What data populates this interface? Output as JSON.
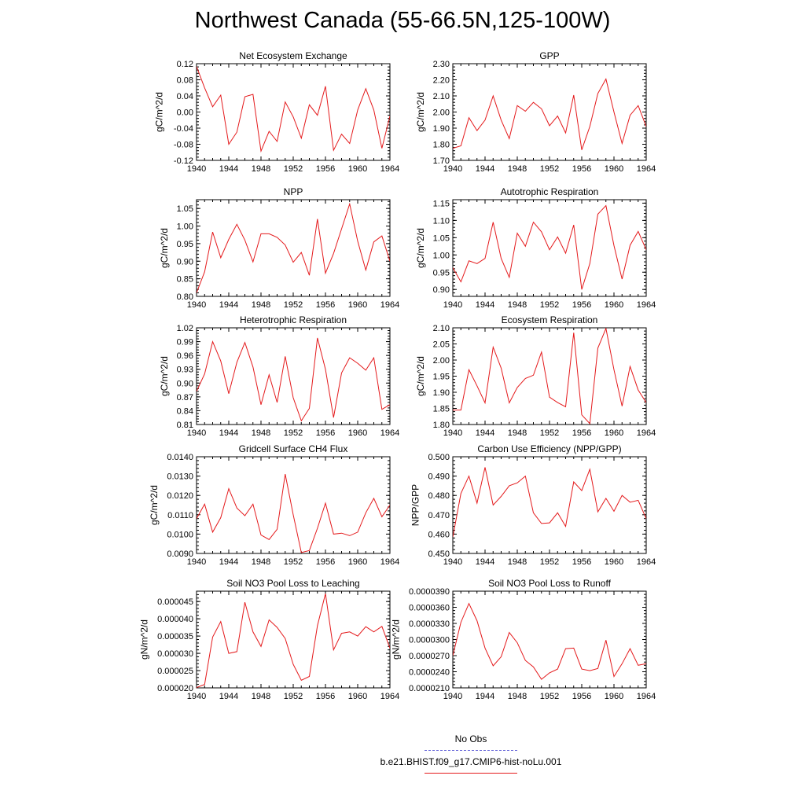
{
  "title": "Northwest Canada (55-66.5N,125-100W)",
  "legend": {
    "entries": [
      {
        "label": "No Obs",
        "color": "#5b5bd6",
        "style": "dashed"
      },
      {
        "label": "b.e21.BHIST.f09_g17.CMIP6-hist-noLu.001",
        "color": "#e41a1c",
        "style": "solid"
      }
    ]
  },
  "chart_data": [
    {
      "type": "line",
      "title": "Net Ecosystem Exchange",
      "ylabel": "gC/m^2/d",
      "xlim": [
        1940,
        1964
      ],
      "ylim": [
        -0.12,
        0.12
      ],
      "xticks": [
        "1940",
        "1944",
        "1948",
        "1952",
        "1956",
        "1960",
        "1964"
      ],
      "yticks": [
        "-0.12",
        "-0.08",
        "-0.04",
        "0.00",
        "0.04",
        "0.08",
        "0.12"
      ],
      "x": [
        1940,
        1941,
        1942,
        1943,
        1944,
        1945,
        1946,
        1947,
        1948,
        1949,
        1950,
        1951,
        1952,
        1953,
        1954,
        1955,
        1956,
        1957,
        1958,
        1959,
        1960,
        1961,
        1962,
        1963,
        1964
      ],
      "series": [
        {
          "name": "b.e21.BHIST.f09_g17.CMIP6-hist-noLu.001",
          "color": "#e41a1c",
          "values": [
            0.113,
            0.06,
            0.013,
            0.042,
            -0.08,
            -0.05,
            0.038,
            0.044,
            -0.097,
            -0.048,
            -0.073,
            0.025,
            -0.012,
            -0.065,
            0.018,
            -0.008,
            0.064,
            -0.095,
            -0.055,
            -0.078,
            0.005,
            0.058,
            0.005,
            -0.09,
            -0.01
          ]
        }
      ]
    },
    {
      "type": "line",
      "title": "GPP",
      "ylabel": "gC/m^2/d",
      "xlim": [
        1940,
        1964
      ],
      "ylim": [
        1.7,
        2.3
      ],
      "xticks": [
        "1940",
        "1944",
        "1948",
        "1952",
        "1956",
        "1960",
        "1964"
      ],
      "yticks": [
        "1.70",
        "1.80",
        "1.90",
        "2.00",
        "2.10",
        "2.20",
        "2.30"
      ],
      "x": [
        1940,
        1941,
        1942,
        1943,
        1944,
        1945,
        1946,
        1947,
        1948,
        1949,
        1950,
        1951,
        1952,
        1953,
        1954,
        1955,
        1956,
        1957,
        1958,
        1959,
        1960,
        1961,
        1962,
        1963,
        1964
      ],
      "series": [
        {
          "name": "b.e21.BHIST.f09_g17.CMIP6-hist-noLu.001",
          "color": "#e41a1c",
          "values": [
            1.775,
            1.79,
            1.965,
            1.885,
            1.95,
            2.1,
            1.95,
            1.835,
            2.04,
            2.005,
            2.06,
            2.02,
            1.915,
            1.975,
            1.87,
            2.105,
            1.765,
            1.91,
            2.115,
            2.205,
            2.0,
            1.805,
            1.98,
            2.04,
            1.91
          ]
        }
      ]
    },
    {
      "type": "line",
      "title": "NPP",
      "ylabel": "gC/m^2/d",
      "xlim": [
        1940,
        1964
      ],
      "ylim": [
        0.8,
        1.075
      ],
      "xticks": [
        "1940",
        "1944",
        "1948",
        "1952",
        "1956",
        "1960",
        "1964"
      ],
      "yticks": [
        "0.80",
        "0.85",
        "0.90",
        "0.95",
        "1.00",
        "1.05"
      ],
      "x": [
        1940,
        1941,
        1942,
        1943,
        1944,
        1945,
        1946,
        1947,
        1948,
        1949,
        1950,
        1951,
        1952,
        1953,
        1954,
        1955,
        1956,
        1957,
        1958,
        1959,
        1960,
        1961,
        1962,
        1963,
        1964
      ],
      "series": [
        {
          "name": "b.e21.BHIST.f09_g17.CMIP6-hist-noLu.001",
          "color": "#e41a1c",
          "values": [
            0.81,
            0.87,
            0.983,
            0.91,
            0.962,
            1.005,
            0.96,
            0.898,
            0.978,
            0.978,
            0.968,
            0.946,
            0.897,
            0.925,
            0.86,
            1.02,
            0.866,
            0.922,
            0.992,
            1.063,
            0.957,
            0.875,
            0.955,
            0.972,
            0.9
          ]
        }
      ]
    },
    {
      "type": "line",
      "title": "Autotrophic Respiration",
      "ylabel": "gC/m^2/d",
      "xlim": [
        1940,
        1964
      ],
      "ylim": [
        0.88,
        1.16
      ],
      "xticks": [
        "1940",
        "1944",
        "1948",
        "1952",
        "1956",
        "1960",
        "1964"
      ],
      "yticks": [
        "0.90",
        "0.95",
        "1.00",
        "1.05",
        "1.10",
        "1.15"
      ],
      "x": [
        1940,
        1941,
        1942,
        1943,
        1944,
        1945,
        1946,
        1947,
        1948,
        1949,
        1950,
        1951,
        1952,
        1953,
        1954,
        1955,
        1956,
        1957,
        1958,
        1959,
        1960,
        1961,
        1962,
        1963,
        1964
      ],
      "series": [
        {
          "name": "b.e21.BHIST.f09_g17.CMIP6-hist-noLu.001",
          "color": "#e41a1c",
          "values": [
            0.963,
            0.922,
            0.983,
            0.975,
            0.99,
            1.095,
            0.99,
            0.935,
            1.063,
            1.025,
            1.095,
            1.067,
            1.015,
            1.052,
            1.005,
            1.087,
            0.9,
            0.975,
            1.118,
            1.143,
            1.027,
            0.93,
            1.028,
            1.068,
            1.015
          ]
        }
      ]
    },
    {
      "type": "line",
      "title": "Heterotrophic Respiration",
      "ylabel": "gC/m^2/d",
      "xlim": [
        1940,
        1964
      ],
      "ylim": [
        0.81,
        1.02
      ],
      "xticks": [
        "1940",
        "1944",
        "1948",
        "1952",
        "1956",
        "1960",
        "1964"
      ],
      "yticks": [
        "0.81",
        "0.84",
        "0.87",
        "0.90",
        "0.93",
        "0.96",
        "0.99",
        "1.02"
      ],
      "x": [
        1940,
        1941,
        1942,
        1943,
        1944,
        1945,
        1946,
        1947,
        1948,
        1949,
        1950,
        1951,
        1952,
        1953,
        1954,
        1955,
        1956,
        1957,
        1958,
        1959,
        1960,
        1961,
        1962,
        1963,
        1964
      ],
      "series": [
        {
          "name": "b.e21.BHIST.f09_g17.CMIP6-hist-noLu.001",
          "color": "#e41a1c",
          "values": [
            0.882,
            0.92,
            0.99,
            0.948,
            0.877,
            0.945,
            0.988,
            0.935,
            0.853,
            0.918,
            0.858,
            0.958,
            0.868,
            0.818,
            0.845,
            0.998,
            0.93,
            0.825,
            0.922,
            0.955,
            0.943,
            0.928,
            0.955,
            0.843,
            0.853
          ]
        }
      ]
    },
    {
      "type": "line",
      "title": "Ecosystem Respiration",
      "ylabel": "gC/m^2/d",
      "xlim": [
        1940,
        1964
      ],
      "ylim": [
        1.8,
        2.1
      ],
      "xticks": [
        "1940",
        "1944",
        "1948",
        "1952",
        "1956",
        "1960",
        "1964"
      ],
      "yticks": [
        "1.80",
        "1.85",
        "1.90",
        "1.95",
        "2.00",
        "2.05",
        "2.10"
      ],
      "x": [
        1940,
        1941,
        1942,
        1943,
        1944,
        1945,
        1946,
        1947,
        1948,
        1949,
        1950,
        1951,
        1952,
        1953,
        1954,
        1955,
        1956,
        1957,
        1958,
        1959,
        1960,
        1961,
        1962,
        1963,
        1964
      ],
      "series": [
        {
          "name": "b.e21.BHIST.f09_g17.CMIP6-hist-noLu.001",
          "color": "#e41a1c",
          "values": [
            1.845,
            1.845,
            1.97,
            1.92,
            1.867,
            2.04,
            1.975,
            1.867,
            1.915,
            1.943,
            1.953,
            2.025,
            1.885,
            1.868,
            1.855,
            2.085,
            1.83,
            1.803,
            2.037,
            2.098,
            1.97,
            1.857,
            1.98,
            1.907,
            1.868
          ]
        }
      ]
    },
    {
      "type": "line",
      "title": "Gridcell Surface CH4 Flux",
      "ylabel": "gC/m^2/d",
      "xlim": [
        1940,
        1964
      ],
      "ylim": [
        0.009,
        0.014
      ],
      "xticks": [
        "1940",
        "1944",
        "1948",
        "1952",
        "1956",
        "1960",
        "1964"
      ],
      "yticks": [
        "0.0090",
        "0.0100",
        "0.0110",
        "0.0120",
        "0.0130",
        "0.0140"
      ],
      "x": [
        1940,
        1941,
        1942,
        1943,
        1944,
        1945,
        1946,
        1947,
        1948,
        1949,
        1950,
        1951,
        1952,
        1953,
        1954,
        1955,
        1956,
        1957,
        1958,
        1959,
        1960,
        1961,
        1962,
        1963,
        1964
      ],
      "series": [
        {
          "name": "b.e21.BHIST.f09_g17.CMIP6-hist-noLu.001",
          "color": "#e41a1c",
          "values": [
            0.0108,
            0.01155,
            0.0101,
            0.01085,
            0.01235,
            0.01135,
            0.01095,
            0.01155,
            0.00995,
            0.00972,
            0.01025,
            0.0131,
            0.011,
            0.00905,
            0.00915,
            0.0103,
            0.0116,
            0.01,
            0.01005,
            0.00992,
            0.0101,
            0.0111,
            0.01185,
            0.0109,
            0.0115
          ]
        }
      ]
    },
    {
      "type": "line",
      "title": "Carbon Use Efficiency (NPP/GPP)",
      "ylabel": "NPP/GPP",
      "xlim": [
        1940,
        1964
      ],
      "ylim": [
        0.45,
        0.5
      ],
      "xticks": [
        "1940",
        "1944",
        "1948",
        "1952",
        "1956",
        "1960",
        "1964"
      ],
      "yticks": [
        "0.450",
        "0.460",
        "0.470",
        "0.480",
        "0.490",
        "0.500"
      ],
      "x": [
        1940,
        1941,
        1942,
        1943,
        1944,
        1945,
        1946,
        1947,
        1948,
        1949,
        1950,
        1951,
        1952,
        1953,
        1954,
        1955,
        1956,
        1957,
        1958,
        1959,
        1960,
        1961,
        1962,
        1963,
        1964
      ],
      "series": [
        {
          "name": "b.e21.BHIST.f09_g17.CMIP6-hist-noLu.001",
          "color": "#e41a1c",
          "values": [
            0.4585,
            0.481,
            0.49,
            0.476,
            0.4945,
            0.475,
            0.4795,
            0.485,
            0.4865,
            0.49,
            0.471,
            0.4655,
            0.4658,
            0.471,
            0.464,
            0.487,
            0.4825,
            0.4935,
            0.4715,
            0.4785,
            0.4718,
            0.48,
            0.4765,
            0.4775,
            0.468
          ]
        }
      ]
    },
    {
      "type": "line",
      "title": "Soil NO3 Pool Loss to Leaching",
      "ylabel": "gN/m^2/d",
      "xlim": [
        1940,
        1964
      ],
      "ylim": [
        2e-05,
        4.8e-05
      ],
      "xticks": [
        "1940",
        "1944",
        "1948",
        "1952",
        "1956",
        "1960",
        "1964"
      ],
      "yticks": [
        "0.000020",
        "0.000025",
        "0.000030",
        "0.000035",
        "0.000040",
        "0.000045"
      ],
      "x": [
        1940,
        1941,
        1942,
        1943,
        1944,
        1945,
        1946,
        1947,
        1948,
        1949,
        1950,
        1951,
        1952,
        1953,
        1954,
        1955,
        1956,
        1957,
        1958,
        1959,
        1960,
        1961,
        1962,
        1963,
        1964
      ],
      "series": [
        {
          "name": "b.e21.BHIST.f09_g17.CMIP6-hist-noLu.001",
          "color": "#e41a1c",
          "values": [
            2.01e-05,
            2.1e-05,
            3.47e-05,
            3.92e-05,
            3e-05,
            3.05e-05,
            4.48e-05,
            3.62e-05,
            3.2e-05,
            3.97e-05,
            3.75e-05,
            3.43e-05,
            2.68e-05,
            2.22e-05,
            2.33e-05,
            3.8e-05,
            4.73e-05,
            3.1e-05,
            3.58e-05,
            3.62e-05,
            3.5e-05,
            3.77e-05,
            3.62e-05,
            3.78e-05,
            3.15e-05
          ]
        }
      ]
    },
    {
      "type": "line",
      "title": "Soil NO3 Pool Loss to Runoff",
      "ylabel": "gN/m^2/d",
      "xlim": [
        1940,
        1964
      ],
      "ylim": [
        2.1e-05,
        3.9e-05
      ],
      "xticks": [
        "1940",
        "1944",
        "1948",
        "1952",
        "1956",
        "1960",
        "1964"
      ],
      "yticks": [
        "0.0000210",
        "0.0000240",
        "0.0000270",
        "0.0000300",
        "0.0000330",
        "0.0000360",
        "0.0000390"
      ],
      "x": [
        1940,
        1941,
        1942,
        1943,
        1944,
        1945,
        1946,
        1947,
        1948,
        1949,
        1950,
        1951,
        1952,
        1953,
        1954,
        1955,
        1956,
        1957,
        1958,
        1959,
        1960,
        1961,
        1962,
        1963,
        1964
      ],
      "series": [
        {
          "name": "b.e21.BHIST.f09_g17.CMIP6-hist-noLu.001",
          "color": "#e41a1c",
          "values": [
            2.7e-05,
            3.32e-05,
            3.67e-05,
            3.35e-05,
            2.84e-05,
            2.51e-05,
            2.68e-05,
            3.13e-05,
            2.94e-05,
            2.61e-05,
            2.49e-05,
            2.26e-05,
            2.38e-05,
            2.45e-05,
            2.83e-05,
            2.84e-05,
            2.45e-05,
            2.42e-05,
            2.46e-05,
            2.99e-05,
            2.31e-05,
            2.55e-05,
            2.83e-05,
            2.52e-05,
            2.55e-05
          ]
        }
      ]
    }
  ]
}
